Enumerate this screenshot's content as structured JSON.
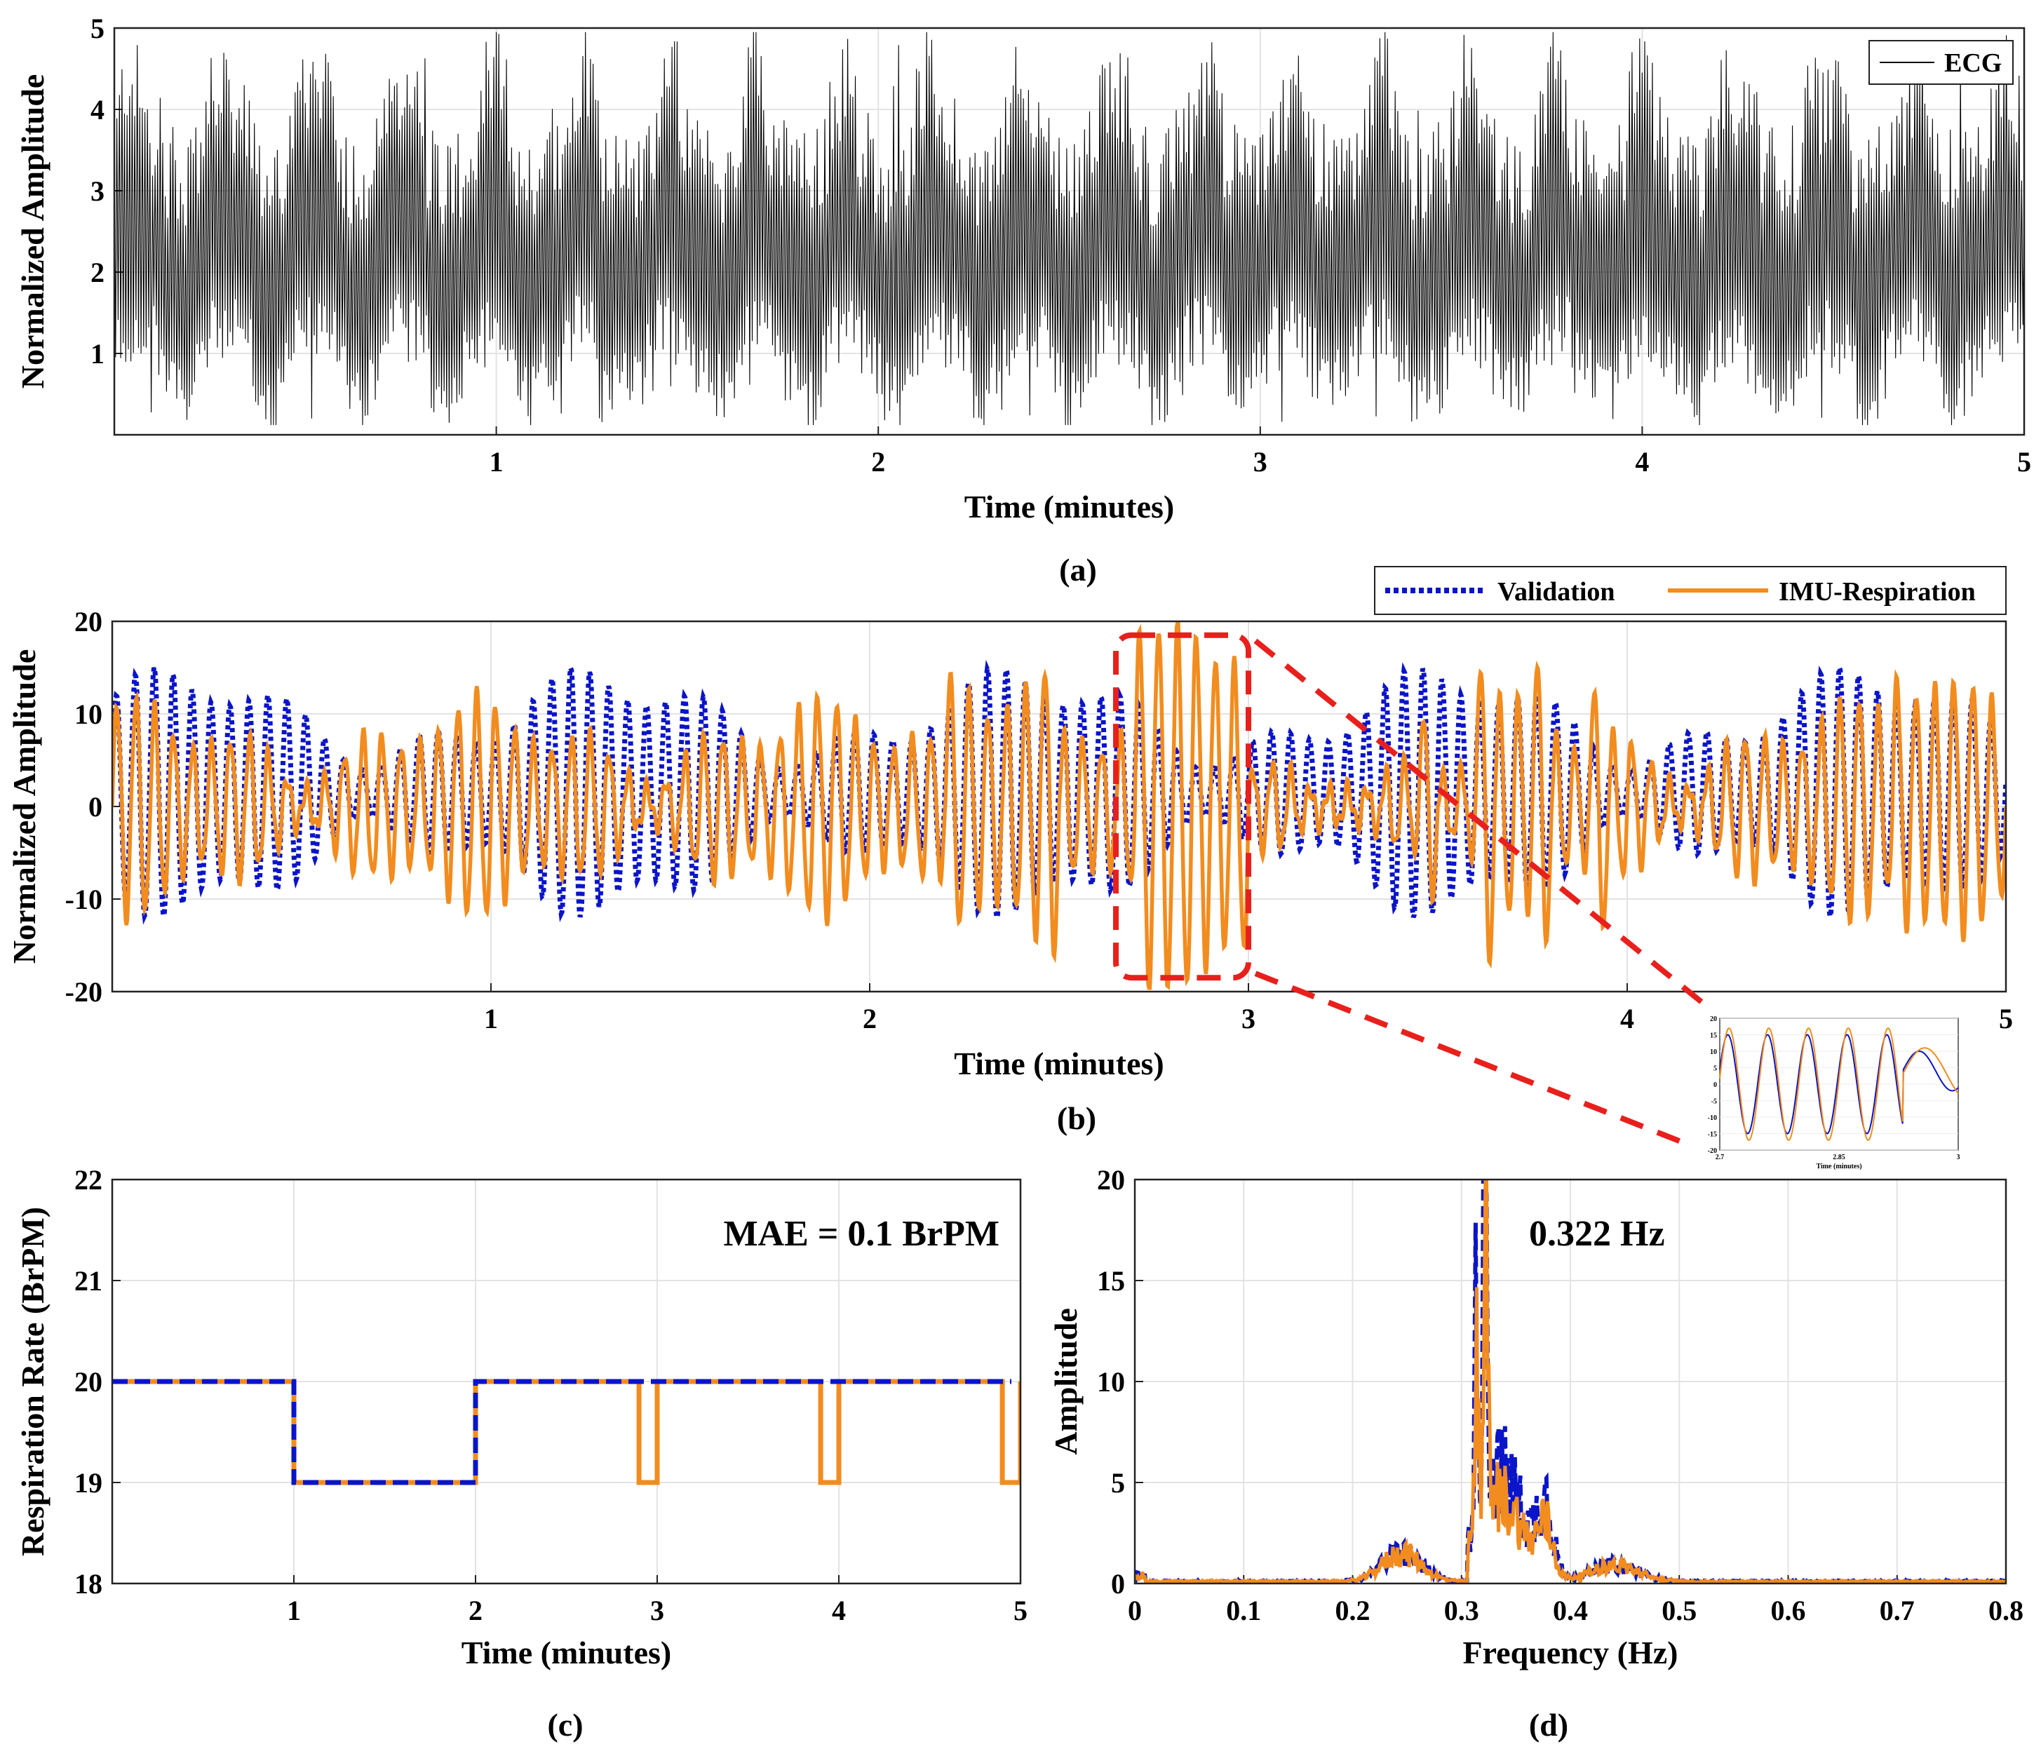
{
  "chart_data": [
    {
      "id": "a",
      "type": "line",
      "panel_label": "(a)",
      "xlabel": "Time (minutes)",
      "ylabel": "Normalized Amplitude",
      "xlim": [
        0,
        5
      ],
      "ylim": [
        0,
        5
      ],
      "xticks": [
        1,
        2,
        3,
        4,
        5
      ],
      "yticks": [
        1,
        2,
        3,
        4,
        5
      ],
      "grid": true,
      "legend": "top-right",
      "series": [
        {
          "name": "ECG",
          "color": "#000000",
          "style": "solid",
          "baseline": 2.0,
          "peak_range": [
            3.2,
            4.9
          ],
          "trough_range": [
            0.15,
            1.0
          ]
        }
      ]
    },
    {
      "id": "b",
      "type": "line",
      "panel_label": "(b)",
      "xlabel": "Time (minutes)",
      "ylabel": "Normalized Amplitude",
      "xlim": [
        0,
        5
      ],
      "ylim": [
        -20,
        20
      ],
      "xticks": [
        1,
        2,
        3,
        4,
        5
      ],
      "yticks": [
        -20,
        -10,
        0,
        10,
        20
      ],
      "grid": true,
      "legend": "top-right",
      "series": [
        {
          "name": "Validation",
          "color": "#0a14c8",
          "style": "dotted",
          "rate_brpm": 20
        },
        {
          "name": "IMU-Respiration",
          "color": "#f28c1e",
          "style": "solid",
          "rate_brpm": 20
        }
      ],
      "annotation": {
        "type": "zoom-box",
        "x_range": [
          2.65,
          3.0
        ],
        "y_range": [
          -18.5,
          18.5
        ],
        "color": "#e8201c"
      },
      "inset": {
        "xlim": [
          2.7,
          3
        ],
        "ylim": [
          -20,
          20
        ],
        "xticks": [
          2.7,
          2.85,
          3
        ],
        "xtick_labels": [
          "2.7",
          "2.85",
          "3"
        ],
        "yticks": [
          -20,
          -15,
          -10,
          -5,
          0,
          5,
          10,
          15,
          20
        ],
        "xlabel": "Time (minutes)"
      }
    },
    {
      "id": "c",
      "type": "line",
      "panel_label": "(c)",
      "xlabel": "Time (minutes)",
      "ylabel": "Respiration Rate (BrPM)",
      "xlim": [
        0,
        5
      ],
      "ylim": [
        18,
        22
      ],
      "xticks": [
        1,
        2,
        3,
        4,
        5
      ],
      "yticks": [
        18,
        19,
        20,
        21,
        22
      ],
      "grid": true,
      "annotation_text": "MAE = 0.1 BrPM",
      "series": [
        {
          "name": "Validation",
          "color": "#0a14c8",
          "style": "dashed",
          "x": [
            0,
            1,
            1,
            2,
            2,
            4.95
          ],
          "y": [
            20,
            20,
            19,
            19,
            20,
            20
          ]
        },
        {
          "name": "IMU-Respiration",
          "color": "#f28c1e",
          "style": "solid",
          "x": [
            0,
            1,
            1,
            2,
            2,
            2.9,
            2.9,
            3.0,
            3.0,
            3.9,
            3.9,
            4.0,
            4.0,
            4.9,
            4.9,
            5.0,
            5.0
          ],
          "y": [
            20,
            20,
            19,
            19,
            20,
            20,
            19,
            19,
            20,
            20,
            19,
            19,
            20,
            20,
            19,
            19,
            20
          ]
        }
      ]
    },
    {
      "id": "d",
      "type": "line",
      "panel_label": "(d)",
      "xlabel": "Frequency (Hz)",
      "ylabel": "Amplitude",
      "xlim": [
        0,
        0.8
      ],
      "ylim": [
        0,
        20
      ],
      "xticks": [
        0,
        0.1,
        0.2,
        0.3,
        0.4,
        0.5,
        0.6,
        0.7,
        0.8
      ],
      "yticks": [
        0,
        5,
        10,
        15,
        20
      ],
      "grid": true,
      "annotation_text": "0.322 Hz",
      "peak_hz": 0.322,
      "series": [
        {
          "name": "Validation",
          "color": "#0a14c8",
          "style": "dashed"
        },
        {
          "name": "IMU-Respiration",
          "color": "#f28c1e",
          "style": "solid"
        }
      ]
    }
  ]
}
